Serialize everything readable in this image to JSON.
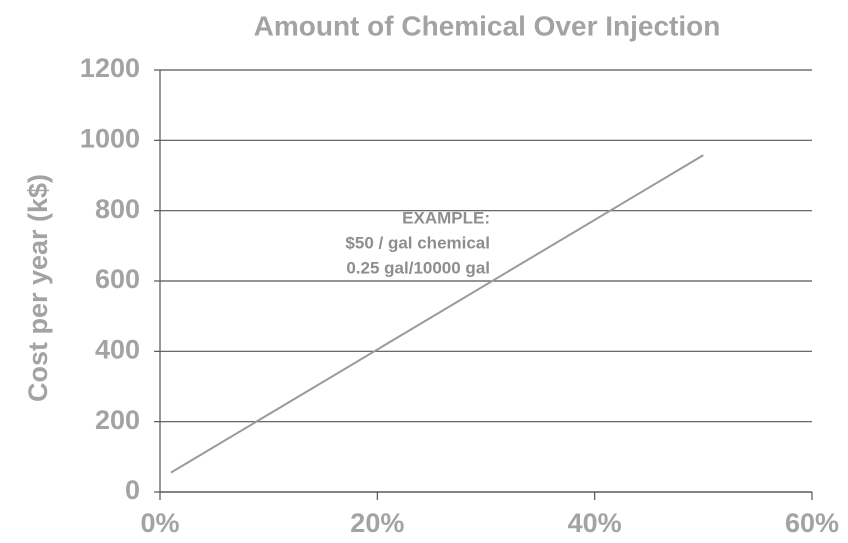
{
  "chart_data": {
    "type": "line",
    "title": "Amount of Chemical Over Injection",
    "ylabel": "Cost per year (k$)",
    "annotation": [
      "EXAMPLE:",
      "$50 / gal chemical",
      "0.25 gal/10000 gal"
    ],
    "x": [
      1,
      50
    ],
    "values": [
      55,
      958
    ],
    "color": "#9a9a9a",
    "xlim": [
      0,
      60
    ],
    "xticks": [
      {
        "value": 0,
        "label": "0%"
      },
      {
        "value": 20,
        "label": "20%"
      },
      {
        "value": 40,
        "label": "40%"
      },
      {
        "value": 60,
        "label": "60%"
      }
    ],
    "ylim": [
      0,
      1200
    ],
    "yticks": [
      0,
      200,
      400,
      600,
      800,
      1000,
      1200
    ],
    "grid": true
  }
}
